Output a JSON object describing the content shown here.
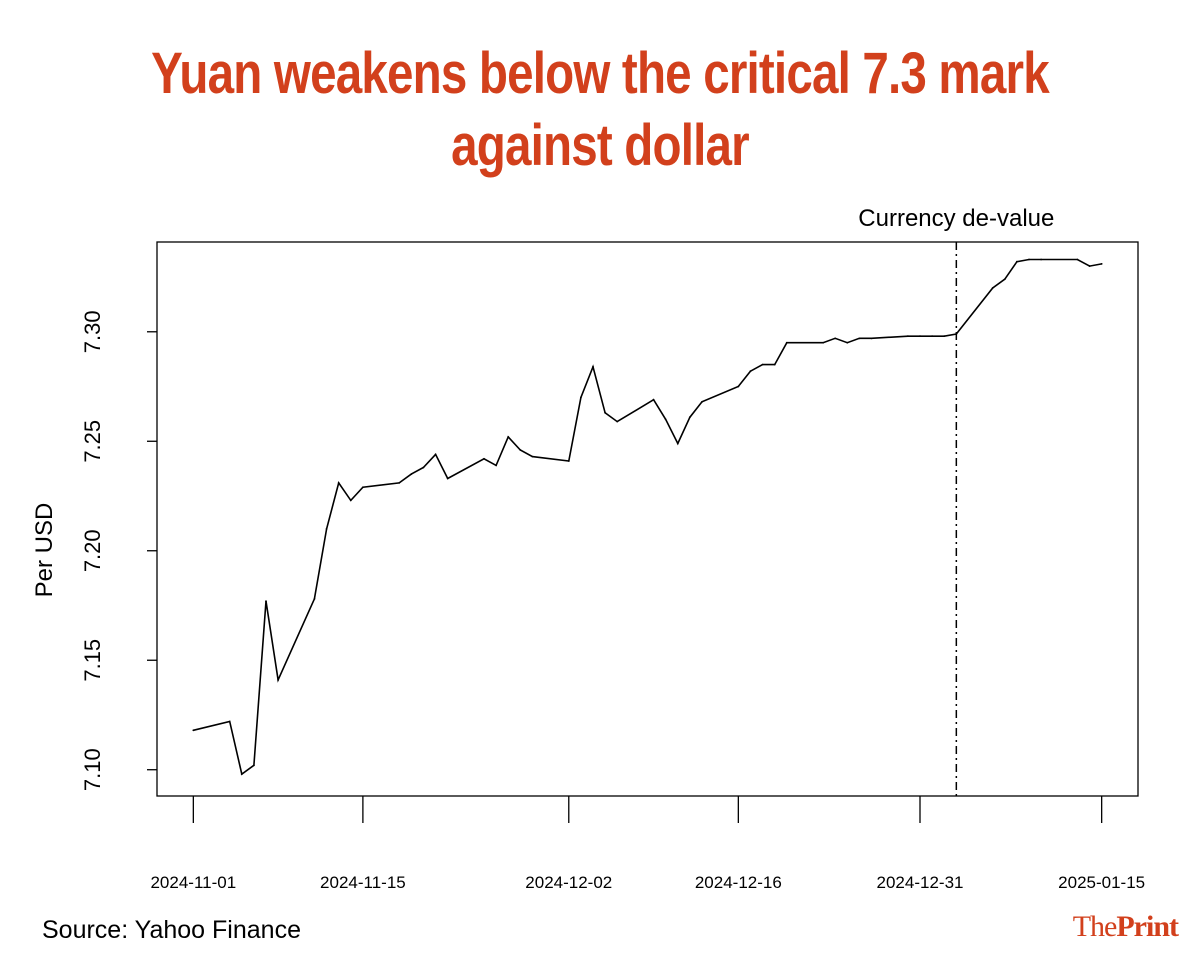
{
  "colors": {
    "title": "#d2401c",
    "line": "#000000",
    "logo": "#d2401c"
  },
  "source_text": "Source: Yahoo Finance",
  "logo": {
    "the": "The",
    "print": "Print"
  },
  "chart_data": {
    "type": "line",
    "title": "Yuan weakens below the critical 7.3 mark against dollar",
    "title_lines": [
      "Yuan weakens below the critical 7.3 mark",
      "against dollar"
    ],
    "xlabel": "",
    "ylabel": "Per USD",
    "x_ticks": [
      "2024-11-01",
      "2024-11-15",
      "2024-12-02",
      "2024-12-16",
      "2024-12-31",
      "2025-01-15"
    ],
    "xlim": [
      "2024-10-29",
      "2025-01-18"
    ],
    "ylim": [
      7.088,
      7.341
    ],
    "y_ticks": [
      7.1,
      7.15,
      7.2,
      7.25,
      7.3
    ],
    "y_tick_labels": [
      "7.10",
      "7.15",
      "7.20",
      "7.25",
      "7.30"
    ],
    "grid": false,
    "annotation": {
      "label": "Currency de-value",
      "date": "2025-01-03",
      "style": "dash-dot vertical line"
    },
    "series": [
      {
        "x": [
          "2024-11-01",
          "2024-11-04",
          "2024-11-05",
          "2024-11-06",
          "2024-11-07",
          "2024-11-08",
          "2024-11-11",
          "2024-11-12",
          "2024-11-13",
          "2024-11-14",
          "2024-11-15",
          "2024-11-18",
          "2024-11-19",
          "2024-11-20",
          "2024-11-21",
          "2024-11-22",
          "2024-11-25",
          "2024-11-26",
          "2024-11-27",
          "2024-11-28",
          "2024-11-29",
          "2024-12-02",
          "2024-12-03",
          "2024-12-04",
          "2024-12-05",
          "2024-12-06",
          "2024-12-09",
          "2024-12-10",
          "2024-12-11",
          "2024-12-12",
          "2024-12-13",
          "2024-12-16",
          "2024-12-17",
          "2024-12-18",
          "2024-12-19",
          "2024-12-20",
          "2024-12-23",
          "2024-12-24",
          "2024-12-25",
          "2024-12-26",
          "2024-12-27",
          "2024-12-30",
          "2024-12-31",
          "2025-01-01",
          "2025-01-02",
          "2025-01-03",
          "2025-01-06",
          "2025-01-07",
          "2025-01-08",
          "2025-01-09",
          "2025-01-10",
          "2025-01-13",
          "2025-01-14",
          "2025-01-15"
        ],
        "y": [
          7.118,
          7.122,
          7.098,
          7.102,
          7.177,
          7.141,
          7.178,
          7.21,
          7.231,
          7.223,
          7.229,
          7.231,
          7.235,
          7.238,
          7.244,
          7.233,
          7.242,
          7.239,
          7.252,
          7.246,
          7.243,
          7.241,
          7.27,
          7.284,
          7.263,
          7.259,
          7.269,
          7.26,
          7.249,
          7.261,
          7.268,
          7.275,
          7.282,
          7.285,
          7.285,
          7.295,
          7.295,
          7.297,
          7.295,
          7.297,
          7.297,
          7.298,
          7.298,
          7.298,
          7.298,
          7.299,
          7.32,
          7.324,
          7.332,
          7.333,
          7.333,
          7.333,
          7.33,
          7.331
        ]
      }
    ]
  }
}
